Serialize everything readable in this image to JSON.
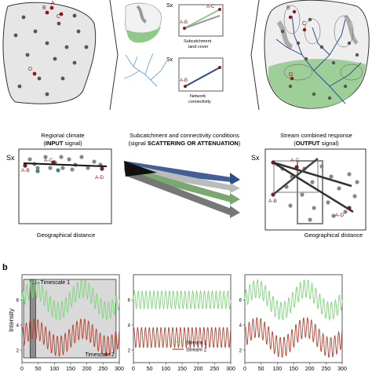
{
  "top": {
    "site_labels": {
      "a": "A",
      "b": "B",
      "c": "C",
      "d": "D"
    },
    "sx": "Sx",
    "subcatchment_mini": {
      "ab": "A-B",
      "ac": "A-C",
      "caption_line1": "Subcatchment",
      "caption_line2": "land cover"
    },
    "network_mini": {
      "ab": "A-B",
      "caption_line1": "Network",
      "caption_line2": "connectivity"
    }
  },
  "middle": {
    "left": {
      "title_line1": "Regional climate",
      "title_prefix": "(",
      "title_strong": "INPUT",
      "title_suffix": " signal)",
      "sx": "Sx",
      "ac": "A-C",
      "ab": "A-B",
      "ad": "A-D",
      "xlabel": "Geographical distance"
    },
    "center": {
      "title_line1": "Subcatchment and connectivity conditions",
      "title_prefix": "(signal ",
      "title_strong": "SCATTERING OR ATTENUATION",
      "title_suffix": ")"
    },
    "right": {
      "title_line1": "Stream combined response",
      "title_prefix": "(",
      "title_strong": "OUTPUT",
      "title_suffix": " signal)",
      "sx": "Sx",
      "ac": "A-C",
      "ab": "A-B",
      "ad": "A-D",
      "xlabel": "Geographical distance"
    }
  },
  "bottom": {
    "panel_letter": "b",
    "ylabel": "Intensity",
    "timescale1": "Timescale 1",
    "timescale2": "Timescale 2",
    "xticks": [
      "0",
      "50",
      "100",
      "150",
      "200",
      "250",
      "300"
    ],
    "yticks": [
      "2",
      "4",
      "6"
    ],
    "legend": {
      "stream1": "Stream 1",
      "stream2": "Stream 2"
    },
    "colors": {
      "stream1": "#7ed67a",
      "stream2": "#b5412f",
      "shade": "#d9d9d9",
      "dark_shade": "#8c8c8c"
    }
  },
  "chart_data": {
    "type": "line",
    "xlim": [
      0,
      300
    ],
    "ylim": [
      1,
      8
    ],
    "series": [
      {
        "name": "Stream 1",
        "color": "#7ed67a",
        "center": 6,
        "slow_amp": [
          0.9,
          0.0,
          0.9
        ],
        "fast_amp": 0.7,
        "fast_period": 12,
        "slow_period": 150
      },
      {
        "name": "Stream 2",
        "color": "#b5412f",
        "center": 3,
        "slow_amp": [
          0.7,
          0.0,
          0.8
        ],
        "fast_amp": 0.8,
        "fast_period": 12,
        "slow_period": 150
      }
    ]
  }
}
